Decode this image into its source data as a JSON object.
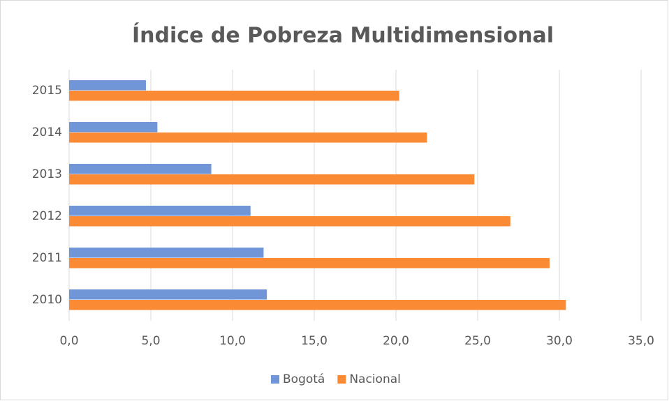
{
  "chart_data": {
    "type": "hbar",
    "title": "Índice de Pobreza Multidimensional",
    "categories": [
      "2010",
      "2011",
      "2012",
      "2013",
      "2014",
      "2015"
    ],
    "series": [
      {
        "name": "Bogotá",
        "color": "#7096d8",
        "values": [
          12.1,
          11.9,
          11.1,
          8.7,
          5.4,
          4.7
        ]
      },
      {
        "name": "Nacional",
        "color": "#fb8a35",
        "values": [
          30.4,
          29.4,
          27.0,
          24.8,
          21.9,
          20.2
        ]
      }
    ],
    "xlim": [
      0,
      35
    ],
    "xticks": [
      {
        "value": 0,
        "label": "0,0"
      },
      {
        "value": 5,
        "label": "5,0"
      },
      {
        "value": 10,
        "label": "10,0"
      },
      {
        "value": 15,
        "label": "15,0"
      },
      {
        "value": 20,
        "label": "20,0"
      },
      {
        "value": 25,
        "label": "25,0"
      },
      {
        "value": 30,
        "label": "30,0"
      },
      {
        "value": 35,
        "label": "35,0"
      }
    ],
    "grid": true,
    "legend": "bottom"
  }
}
